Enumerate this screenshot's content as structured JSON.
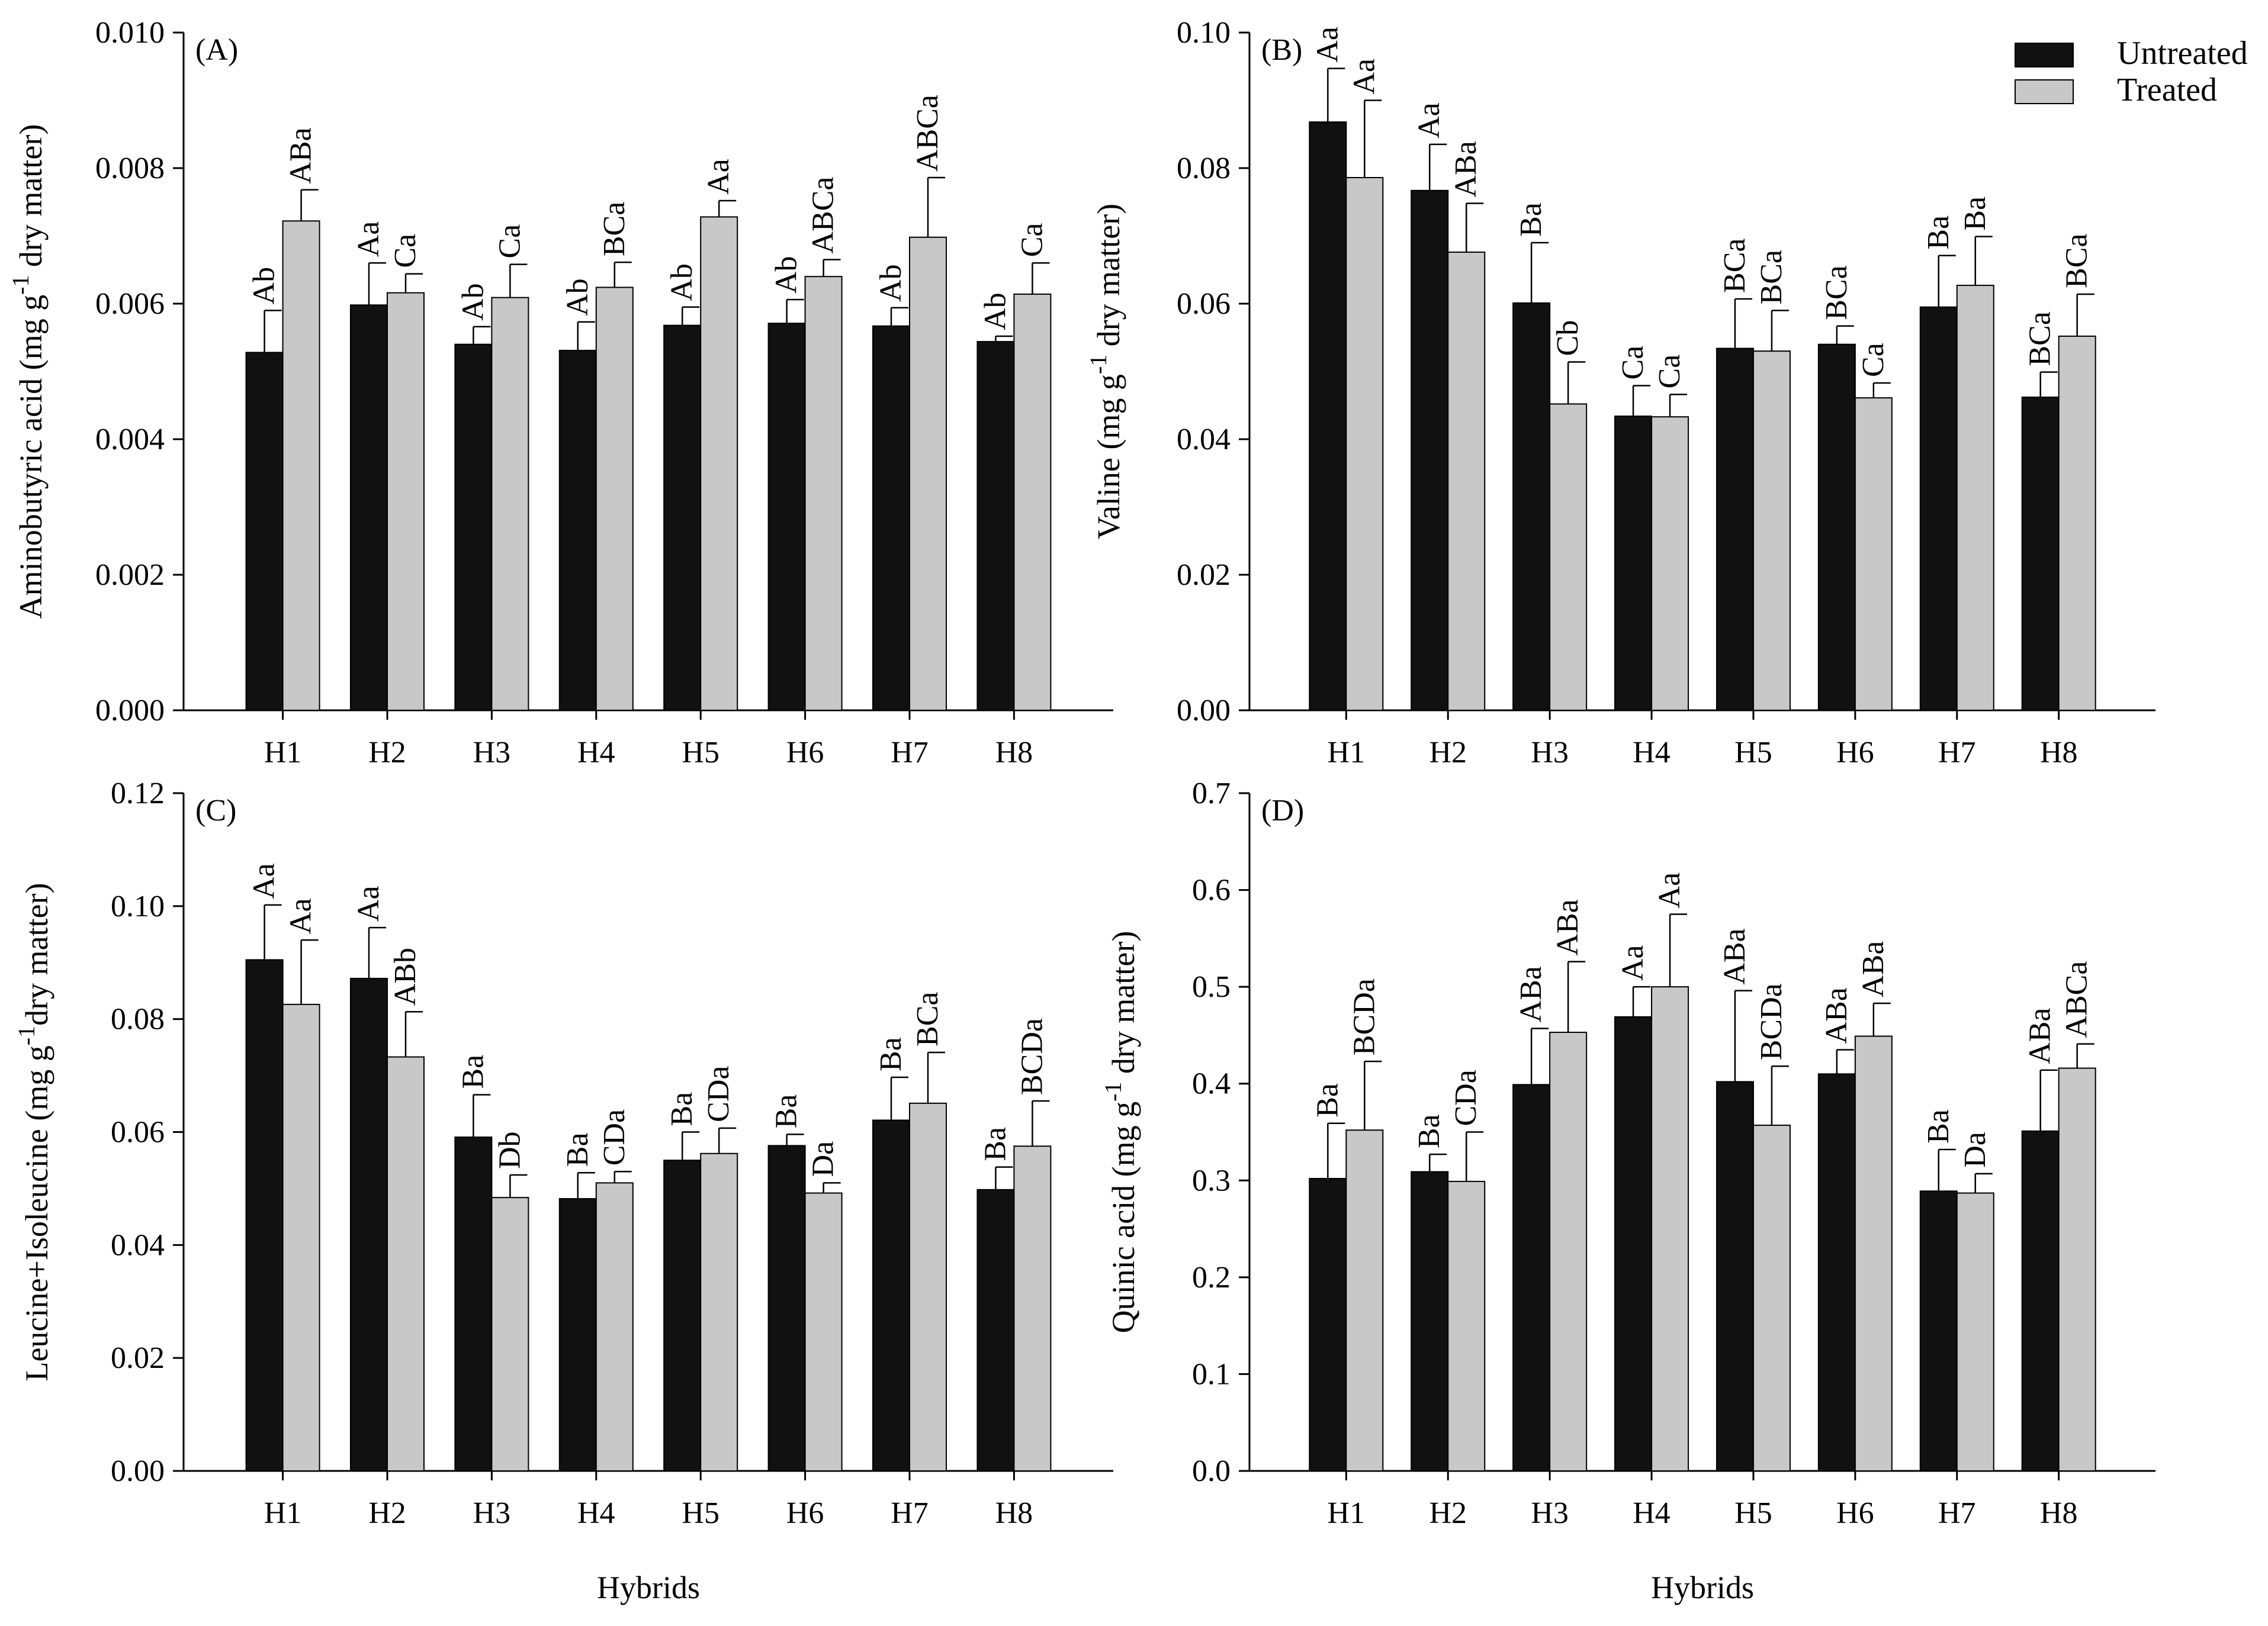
{
  "colors": {
    "untreated": "#111111",
    "treated": "#c8c8c8",
    "axis": "#000000",
    "background": "#ffffff"
  },
  "legend": {
    "untreated": "Untreated",
    "treated": "Treated"
  },
  "chart_data": [
    {
      "type": "bar",
      "panel": "(A)",
      "categories": [
        "H1",
        "H2",
        "H3",
        "H4",
        "H5",
        "H6",
        "H7",
        "H8"
      ],
      "xlabel": "",
      "ylabel": "Aminobutyric acid (mg g-1 dry matter)",
      "ylim": [
        0,
        0.01
      ],
      "yticks": [
        "0.000",
        "0.002",
        "0.004",
        "0.006",
        "0.008",
        "0.010"
      ],
      "series": [
        {
          "name": "Untreated",
          "values": [
            0.00528,
            0.00598,
            0.0054,
            0.00531,
            0.00568,
            0.00571,
            0.00567,
            0.00544
          ],
          "errors": [
            0.00062,
            0.00062,
            0.00026,
            0.00042,
            0.00027,
            0.00035,
            0.00027,
            8e-05
          ],
          "labels": [
            "Ab",
            "Aa",
            "Ab",
            "Ab",
            "Ab",
            "Ab",
            "Ab",
            "Ab"
          ]
        },
        {
          "name": "Treated",
          "values": [
            0.00722,
            0.00616,
            0.00609,
            0.00624,
            0.00728,
            0.0064,
            0.00698,
            0.00614
          ],
          "errors": [
            0.00046,
            0.00028,
            0.00049,
            0.00037,
            0.00024,
            0.00025,
            0.00088,
            0.00046
          ],
          "labels": [
            "ABa",
            "Ca",
            "Ca",
            "BCa",
            "Aa",
            "ABCa",
            "ABCa",
            "Ca"
          ]
        }
      ]
    },
    {
      "type": "bar",
      "panel": "(B)",
      "categories": [
        "H1",
        "H2",
        "H3",
        "H4",
        "H5",
        "H6",
        "H7",
        "H8"
      ],
      "xlabel": "",
      "ylabel": "Valine (mg g-1 dry matter)",
      "ylim": [
        0,
        0.1
      ],
      "yticks": [
        "0.00",
        "0.02",
        "0.04",
        "0.06",
        "0.08",
        "0.10"
      ],
      "series": [
        {
          "name": "Untreated",
          "values": [
            0.0868,
            0.0767,
            0.0601,
            0.0434,
            0.0534,
            0.054,
            0.0595,
            0.0462
          ],
          "errors": [
            0.0079,
            0.0068,
            0.0089,
            0.0045,
            0.0073,
            0.0027,
            0.0076,
            0.0037
          ],
          "labels": [
            "Aa",
            "Aa",
            "Ba",
            "Ca",
            "BCa",
            "BCa",
            "Ba",
            "BCa"
          ]
        },
        {
          "name": "Treated",
          "values": [
            0.0786,
            0.0676,
            0.0452,
            0.0433,
            0.053,
            0.0461,
            0.0627,
            0.0552
          ],
          "errors": [
            0.0114,
            0.0072,
            0.0062,
            0.0033,
            0.006,
            0.0022,
            0.0072,
            0.0062
          ],
          "labels": [
            "Aa",
            "ABa",
            "Cb",
            "Ca",
            "BCa",
            "Ca",
            "Ba",
            "BCa"
          ]
        }
      ]
    },
    {
      "type": "bar",
      "panel": "(C)",
      "categories": [
        "H1",
        "H2",
        "H3",
        "H4",
        "H5",
        "H6",
        "H7",
        "H8"
      ],
      "xlabel": "Hybrids",
      "ylabel": "Leucine+Isoleucine (mg g-1dry matter)",
      "ylim": [
        0,
        0.12
      ],
      "yticks": [
        "0.00",
        "0.02",
        "0.04",
        "0.06",
        "0.08",
        "0.10",
        "0.12"
      ],
      "series": [
        {
          "name": "Untreated",
          "values": [
            0.0905,
            0.0872,
            0.0591,
            0.0482,
            0.055,
            0.0576,
            0.0621,
            0.0498
          ],
          "errors": [
            0.0097,
            0.009,
            0.0075,
            0.0046,
            0.005,
            0.002,
            0.0076,
            0.004
          ],
          "labels": [
            "Aa",
            "Aa",
            "Ba",
            "Ba",
            "Ba",
            "Ba",
            "Ba",
            "Ba"
          ]
        },
        {
          "name": "Treated",
          "values": [
            0.0826,
            0.0733,
            0.0484,
            0.051,
            0.0562,
            0.0492,
            0.0651,
            0.0575
          ],
          "errors": [
            0.0114,
            0.008,
            0.004,
            0.002,
            0.0045,
            0.0018,
            0.009,
            0.008
          ],
          "labels": [
            "Aa",
            "ABb",
            "Db",
            "CDa",
            "CDa",
            "Da",
            "BCa",
            "BCDa"
          ]
        }
      ]
    },
    {
      "type": "bar",
      "panel": "(D)",
      "categories": [
        "H1",
        "H2",
        "H3",
        "H4",
        "H5",
        "H6",
        "H7",
        "H8"
      ],
      "xlabel": "Hybrids",
      "ylabel": "Quinic acid (mg g-1 dry matter)",
      "ylim": [
        0,
        0.7
      ],
      "yticks": [
        "0.0",
        "0.1",
        "0.2",
        "0.3",
        "0.4",
        "0.5",
        "0.6",
        "0.7"
      ],
      "series": [
        {
          "name": "Untreated",
          "values": [
            0.302,
            0.309,
            0.399,
            0.469,
            0.402,
            0.41,
            0.289,
            0.351
          ],
          "errors": [
            0.057,
            0.018,
            0.058,
            0.031,
            0.094,
            0.025,
            0.043,
            0.063
          ],
          "labels": [
            "Ba",
            "Ba",
            "ABa",
            "Aa",
            "ABa",
            "ABa",
            "Ba",
            "ABa"
          ]
        },
        {
          "name": "Treated",
          "values": [
            0.352,
            0.299,
            0.453,
            0.5,
            0.357,
            0.449,
            0.287,
            0.416
          ],
          "errors": [
            0.071,
            0.051,
            0.073,
            0.075,
            0.061,
            0.034,
            0.02,
            0.025
          ],
          "labels": [
            "BCDa",
            "CDa",
            "ABa",
            "Aa",
            "BCDa",
            "ABa",
            "Da",
            "ABCa"
          ]
        }
      ]
    }
  ]
}
